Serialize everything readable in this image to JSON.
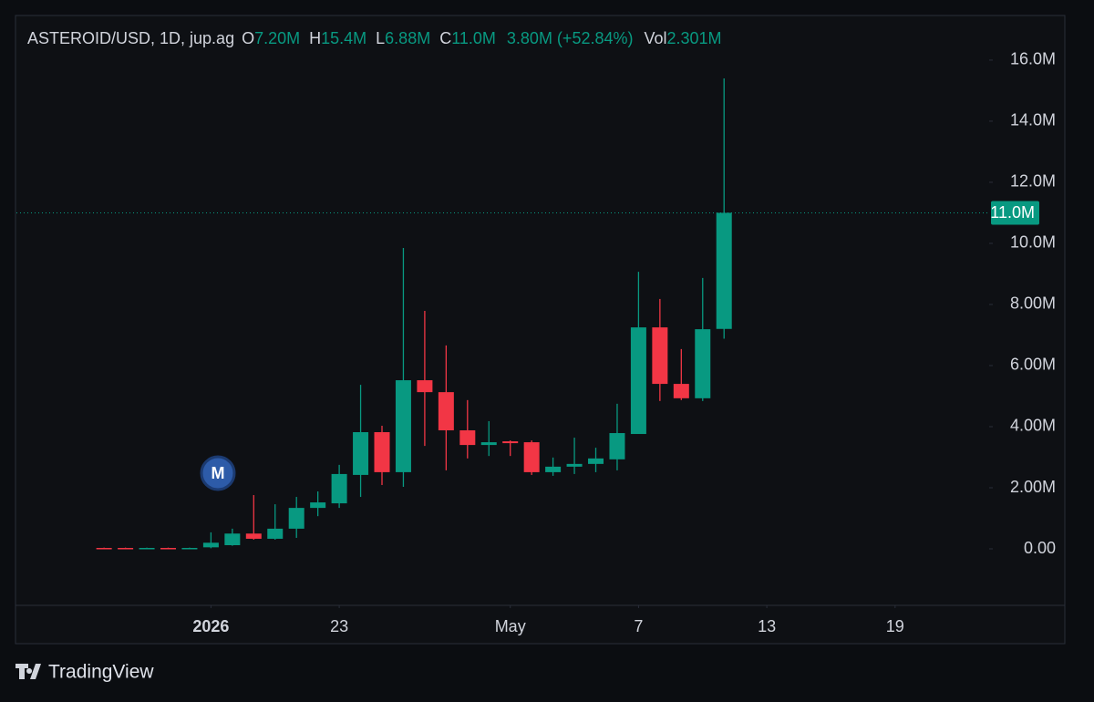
{
  "chart_data": {
    "type": "candlestick",
    "header": {
      "symbol": "ASTEROID/USD, 1D, jup.ag",
      "o_key": "O",
      "o_val": "7.20M",
      "h_key": "H",
      "h_val": "15.4M",
      "l_key": "L",
      "l_val": "6.88M",
      "c_key": "C",
      "c_val": "11.0M",
      "change": "3.80M (+52.84%)",
      "vol_key": "Vol",
      "vol_val": "2.301M"
    },
    "categories": [
      null,
      null,
      null,
      null,
      null,
      null,
      null,
      null,
      null,
      null,
      null,
      null,
      null,
      null,
      null,
      null,
      null,
      null,
      null,
      null,
      null,
      null,
      null,
      null,
      null,
      null,
      null,
      null,
      null,
      null
    ],
    "open": [
      0.03,
      0.03,
      0.02,
      0.03,
      0.02,
      0.05,
      0.12,
      0.5,
      0.33,
      0.66,
      1.34,
      1.49,
      2.42,
      3.82,
      2.51,
      5.52,
      5.13,
      3.88,
      3.4,
      3.52,
      3.49,
      2.51,
      2.69,
      2.78,
      2.93,
      3.76,
      7.25,
      5.4,
      4.93,
      7.2
    ],
    "high": [
      0.04,
      0.04,
      0.04,
      0.04,
      0.04,
      0.54,
      0.66,
      1.76,
      1.46,
      1.7,
      1.88,
      2.75,
      5.37,
      4.03,
      9.85,
      7.79,
      6.66,
      4.87,
      4.18,
      3.55,
      3.55,
      2.99,
      3.64,
      3.31,
      4.75,
      9.07,
      8.18,
      6.54,
      8.87,
      15.4
    ],
    "low": [
      0.01,
      0.01,
      0.01,
      0.01,
      0.01,
      0.02,
      0.1,
      0.3,
      0.3,
      0.36,
      1.07,
      1.34,
      1.7,
      2.09,
      2.03,
      3.37,
      2.57,
      2.96,
      3.04,
      3.04,
      2.42,
      2.39,
      2.45,
      2.51,
      2.57,
      3.76,
      4.84,
      4.87,
      4.84,
      6.88
    ],
    "close": [
      0.02,
      0.02,
      0.03,
      0.02,
      0.03,
      0.2,
      0.5,
      0.33,
      0.66,
      1.34,
      1.52,
      2.45,
      3.82,
      2.51,
      5.52,
      5.13,
      3.88,
      3.4,
      3.49,
      3.46,
      2.51,
      2.69,
      2.78,
      2.96,
      3.79,
      7.25,
      5.4,
      4.93,
      7.19,
      11.0
    ],
    "up_color": "#089981",
    "down_color": "#f23645",
    "xlim": [
      -4.1,
      41.4
    ],
    "xticks": [
      {
        "value": 5,
        "label": "2026"
      },
      {
        "value": 11,
        "label": "23"
      },
      {
        "value": 19,
        "label": "May"
      },
      {
        "value": 25,
        "label": "7"
      },
      {
        "value": 31,
        "label": "13"
      },
      {
        "value": 37,
        "label": "19"
      }
    ],
    "ylim": [
      -1.85,
      17.43
    ],
    "yticks": [
      {
        "value": 0,
        "label": "0.00"
      },
      {
        "value": 2,
        "label": "2.00M"
      },
      {
        "value": 4,
        "label": "4.00M"
      },
      {
        "value": 6,
        "label": "6.00M"
      },
      {
        "value": 8,
        "label": "8.00M"
      },
      {
        "value": 10,
        "label": "10.0M"
      },
      {
        "value": 12,
        "label": "12.0M"
      },
      {
        "value": 14,
        "label": "14.0M"
      },
      {
        "value": 16,
        "label": "16.0M"
      }
    ],
    "last_price_label": "11.0M",
    "annotation": "M",
    "branding": "TradingView"
  }
}
